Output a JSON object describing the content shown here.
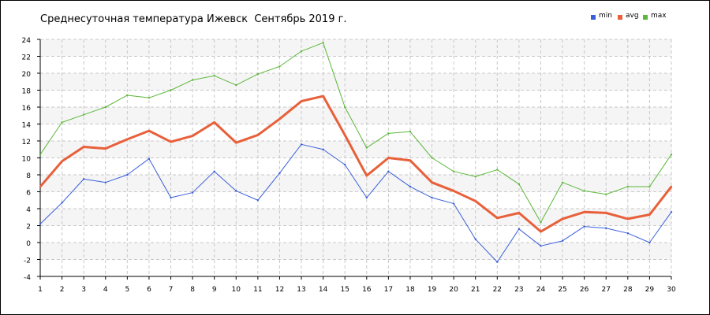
{
  "chart_data": {
    "type": "line",
    "title": "Среднесуточная температура Ижевск  Сентябрь 2019 г.",
    "xlabel": "",
    "ylabel": "",
    "x": [
      1,
      2,
      3,
      4,
      5,
      6,
      7,
      8,
      9,
      10,
      11,
      12,
      13,
      14,
      15,
      16,
      17,
      18,
      19,
      20,
      21,
      22,
      23,
      24,
      25,
      26,
      27,
      28,
      29,
      30
    ],
    "xlim": [
      1,
      30
    ],
    "ylim": [
      -4,
      24
    ],
    "y_ticks": [
      -4,
      -2,
      0,
      2,
      4,
      6,
      8,
      10,
      12,
      14,
      16,
      18,
      20,
      22,
      24
    ],
    "grid": true,
    "legend_position": "top-right",
    "series": [
      {
        "name": "min",
        "color": "#3a5fd9",
        "values": [
          2.2,
          4.7,
          7.5,
          7.1,
          8.0,
          9.9,
          5.3,
          5.9,
          8.4,
          6.1,
          5.0,
          8.2,
          11.6,
          11.0,
          9.2,
          5.3,
          8.4,
          6.6,
          5.3,
          4.6,
          0.4,
          -2.3,
          1.6,
          -0.4,
          0.2,
          1.9,
          1.7,
          1.1,
          0.0,
          3.6
        ]
      },
      {
        "name": "avg",
        "color": "#e8603a",
        "values": [
          6.6,
          9.6,
          11.3,
          11.1,
          12.2,
          13.2,
          11.9,
          12.6,
          14.2,
          11.8,
          12.7,
          14.6,
          16.7,
          17.3,
          12.7,
          7.9,
          10.0,
          9.7,
          7.1,
          6.1,
          4.9,
          2.9,
          3.5,
          1.3,
          2.8,
          3.6,
          3.5,
          2.8,
          3.3,
          6.6
        ]
      },
      {
        "name": "max",
        "color": "#5cb83a",
        "values": [
          10.4,
          14.2,
          15.1,
          16.0,
          17.4,
          17.1,
          18.0,
          19.2,
          19.7,
          18.6,
          19.9,
          20.8,
          22.6,
          23.6,
          16.0,
          11.2,
          12.9,
          13.1,
          10.0,
          8.4,
          7.8,
          8.6,
          6.9,
          2.4,
          7.1,
          6.1,
          5.7,
          6.6,
          6.6,
          10.4
        ]
      }
    ]
  }
}
